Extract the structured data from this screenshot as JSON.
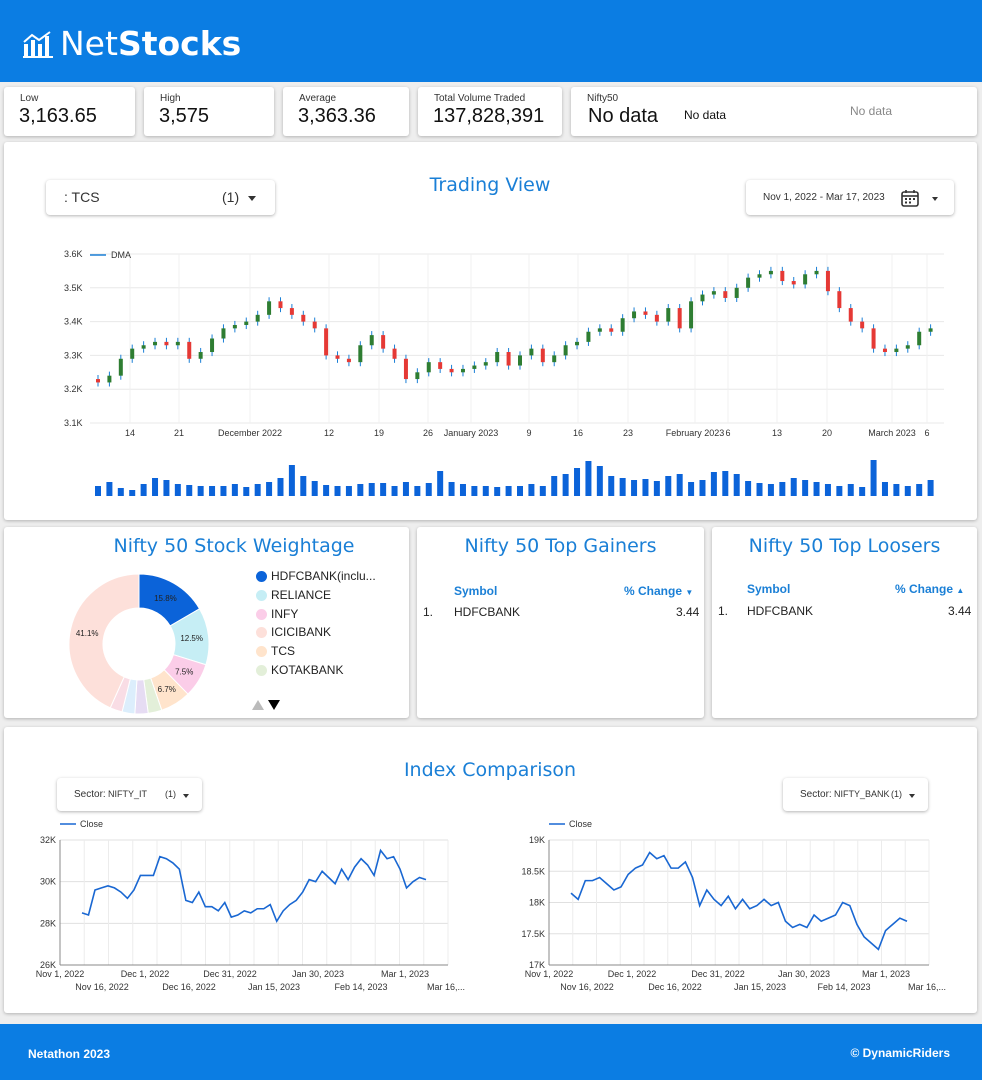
{
  "brand": {
    "net": "Net",
    "stocks": "Stocks"
  },
  "colors": {
    "primary": "#0b7de3",
    "accent": "#1a7fd6",
    "up": "#2e7d32",
    "down": "#e53935"
  },
  "kpis": [
    {
      "label": "Low",
      "value": "3,163.65"
    },
    {
      "label": "High",
      "value": "3,575"
    },
    {
      "label": "Average",
      "value": "3,363.36"
    },
    {
      "label": "Total Volume Traded",
      "value": "137,828,391"
    }
  ],
  "nifty50": {
    "label": "Nifty50",
    "value": "No data",
    "value2": "No data",
    "value3": "No data"
  },
  "trading": {
    "title": "Trading View",
    "stock_select": {
      "value": ": TCS",
      "count": "(1)"
    },
    "date_range": "Nov 1, 2022 - Mar 17, 2023",
    "legend": "DMA",
    "yticks": [
      "3.6K",
      "3.5K",
      "3.4K",
      "3.3K",
      "3.2K",
      "3.1K"
    ],
    "xticks": [
      "14",
      "21",
      "December 2022",
      "12",
      "19",
      "26",
      "January 2023",
      "9",
      "16",
      "23",
      "February 2023",
      "6",
      "13",
      "20",
      "March 2023",
      "6"
    ]
  },
  "chart_data": [
    {
      "type": "candlestick",
      "title": "Trading View",
      "ylim": [
        3100,
        3600
      ],
      "legend": [
        "DMA"
      ],
      "closes": [
        3220,
        3240,
        3290,
        3320,
        3330,
        3340,
        3330,
        3340,
        3290,
        3310,
        3350,
        3380,
        3390,
        3400,
        3420,
        3460,
        3440,
        3420,
        3400,
        3380,
        3300,
        3290,
        3280,
        3330,
        3360,
        3320,
        3290,
        3230,
        3250,
        3280,
        3260,
        3250,
        3260,
        3270,
        3280,
        3310,
        3270,
        3300,
        3320,
        3280,
        3300,
        3330,
        3340,
        3370,
        3380,
        3370,
        3410,
        3430,
        3420,
        3400,
        3440,
        3380,
        3460,
        3480,
        3490,
        3470,
        3500,
        3530,
        3540,
        3550,
        3520,
        3510,
        3540,
        3550,
        3490,
        3440,
        3400,
        3380,
        3320,
        3310,
        3320,
        3330,
        3370,
        3380
      ]
    },
    {
      "type": "line",
      "series": [
        {
          "name": "Close",
          "values": [
            28500,
            28400,
            29600,
            29700,
            29800,
            29700,
            29500,
            29200,
            29600,
            30300,
            30300,
            30300,
            31200,
            31100,
            30900,
            30600,
            29100,
            29000,
            29500,
            28800,
            28800,
            28600,
            29000,
            28300,
            28400,
            28600,
            28500,
            28700,
            28700,
            28900,
            28100,
            28600,
            28900,
            29100,
            29500,
            30100,
            30000,
            30500,
            30200,
            29900,
            30600,
            30100,
            30700,
            31100,
            30800,
            30300,
            31500,
            31100,
            31200,
            30600,
            29700,
            30000,
            30200,
            30100
          ]
        }
      ],
      "xticks": [
        "Nov 1, 2022",
        "Dec 1, 2022",
        "Dec 31, 2022",
        "Jan 30, 2023",
        "Mar 1, 2023"
      ],
      "xticks2": [
        "Nov 16, 2022",
        "Dec 16, 2022",
        "Jan 15, 2023",
        "Feb 14, 2023",
        "Mar 16,..."
      ],
      "yticks": [
        "32K",
        "30K",
        "28K",
        "26K"
      ],
      "ylim": [
        26000,
        32000
      ]
    },
    {
      "type": "line",
      "series": [
        {
          "name": "Close",
          "values": [
            18150,
            18050,
            18350,
            18350,
            18400,
            18300,
            18200,
            18250,
            18450,
            18550,
            18600,
            18800,
            18700,
            18750,
            18550,
            18550,
            18650,
            18400,
            17950,
            18200,
            18050,
            17950,
            18100,
            17900,
            18050,
            17900,
            17950,
            18050,
            17950,
            18000,
            17700,
            17600,
            17650,
            17600,
            17800,
            17700,
            17750,
            17800,
            18000,
            17950,
            17650,
            17450,
            17350,
            17250,
            17550,
            17650,
            17750,
            17700
          ]
        }
      ],
      "xticks": [
        "Nov 1, 2022",
        "Dec 1, 2022",
        "Dec 31, 2022",
        "Jan 30, 2023",
        "Mar 1, 2023"
      ],
      "xticks2": [
        "Nov 16, 2022",
        "Dec 16, 2022",
        "Jan 15, 2023",
        "Feb 14, 2023",
        "Mar 16,..."
      ],
      "yticks": [
        "19K",
        "18.5K",
        "18K",
        "17.5K",
        "17K"
      ],
      "ylim": [
        17000,
        19000
      ]
    }
  ],
  "weightage": {
    "title": "Nifty 50 Stock Weightage",
    "legend": [
      "HDFCBANK(inclu...",
      "RELIANCE",
      "INFY",
      "ICICIBANK",
      "TCS",
      "KOTAKBANK"
    ],
    "slice_labels": [
      "15.8%",
      "12.5%",
      "7.5%",
      "6.7%",
      "41.1%"
    ],
    "slices": [
      {
        "value": 15.8,
        "color": "#0b63d9"
      },
      {
        "value": 12.5,
        "color": "#c6eef5"
      },
      {
        "value": 7.5,
        "color": "#fbcde8"
      },
      {
        "value": 6.7,
        "color": "#ffe4cc"
      },
      {
        "value": 3.0,
        "color": "#e3efd9"
      },
      {
        "value": 2.9,
        "color": "#e6dcf3"
      },
      {
        "value": 2.8,
        "color": "#dceefc"
      },
      {
        "value": 2.7,
        "color": "#f9dde5"
      },
      {
        "value": 41.1,
        "color": "#fde0da"
      }
    ]
  },
  "gainers": {
    "title": "Nifty 50 Top Gainers",
    "col_symbol": "Symbol",
    "col_change": "% Change",
    "rows": [
      {
        "num": "1.",
        "symbol": "HDFCBANK",
        "change": "3.44"
      }
    ]
  },
  "losers": {
    "title": "Nifty 50 Top Loosers",
    "col_symbol": "Symbol",
    "col_change": "% Change",
    "rows": [
      {
        "num": "1.",
        "symbol": "HDFCBANK",
        "change": "3.44"
      }
    ]
  },
  "index_comparison": {
    "title": "Index Comparison",
    "left_select": {
      "label": "Sector:",
      "value": "NIFTY_IT",
      "count": "(1)"
    },
    "right_select": {
      "label": "Sector:",
      "value": "NIFTY_BANK",
      "count": "(1)"
    },
    "legend": "Close"
  },
  "footer": {
    "left": "Netathon 2023",
    "right": "© DynamicRiders"
  }
}
